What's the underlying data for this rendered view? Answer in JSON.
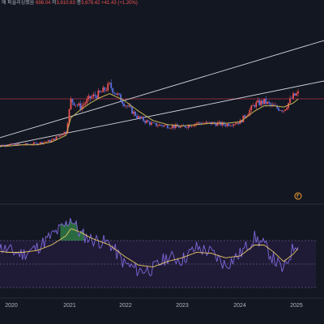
{
  "legend": {
    "title": "에 퍼플리싱했음",
    "o_value": "698.04",
    "h_label": "저",
    "h_value": "3,610.63",
    "c_label": "종",
    "c_value": "3,679.42",
    "change": "+41.43 (+1.20%)"
  },
  "colors": {
    "background": "#131722",
    "up": "#ef5350",
    "down": "#5b6ee1",
    "ma": "#c9b458",
    "channel": "#d1d4dc",
    "hline": "#b2304a",
    "rsi_line": "#8067dc",
    "rsi_signal": "#e8c867",
    "rsi_band": "#2a1f47"
  },
  "marker_icon": "flag-circle-icon",
  "chart_data": [
    {
      "type": "line",
      "title": "",
      "x": [
        "2019-10",
        "2020-01",
        "2020-04",
        "2020-07",
        "2020-10",
        "2021-01",
        "2021-02",
        "2021-04",
        "2021-06",
        "2021-08",
        "2021-10",
        "2022-01",
        "2022-04",
        "2022-07",
        "2022-10",
        "2023-01",
        "2023-04",
        "2023-07",
        "2023-10",
        "2024-01",
        "2024-04",
        "2024-06",
        "2024-08",
        "2024-10",
        "2024-12",
        "2025-01"
      ],
      "series": [
        {
          "name": "",
          "values": [
            1,
            2,
            2,
            3,
            5,
            12,
            35,
            30,
            37,
            40,
            46,
            33,
            22,
            17,
            16,
            15,
            18,
            18,
            17,
            19,
            32,
            34,
            30,
            28,
            38,
            40
          ]
        },
        {
          "name": "",
          "values": [
            1,
            1,
            2,
            2,
            4,
            9,
            22,
            28,
            33,
            37,
            40,
            35,
            27,
            20,
            17,
            16,
            17,
            18,
            18,
            19,
            27,
            31,
            31,
            30,
            33,
            36
          ]
        }
      ]
    },
    {
      "type": "line",
      "title": "",
      "x": [
        "2019-10",
        "2020-01",
        "2020-04",
        "2020-07",
        "2020-10",
        "2021-01",
        "2021-02",
        "2021-04",
        "2021-06",
        "2021-08",
        "2021-10",
        "2022-01",
        "2022-04",
        "2022-07",
        "2022-10",
        "2023-01",
        "2023-04",
        "2023-07",
        "2023-10",
        "2024-01",
        "2024-04",
        "2024-06",
        "2024-08",
        "2024-10",
        "2024-12",
        "2025-01"
      ],
      "series": [
        {
          "name": "",
          "values": [
            58,
            52,
            48,
            55,
            68,
            80,
            88,
            70,
            65,
            62,
            60,
            38,
            30,
            32,
            45,
            42,
            55,
            50,
            36,
            48,
            66,
            58,
            42,
            30,
            55,
            62
          ]
        },
        {
          "name": "",
          "values": [
            52,
            50,
            50,
            52,
            58,
            68,
            76,
            72,
            66,
            62,
            58,
            46,
            36,
            34,
            40,
            44,
            50,
            49,
            44,
            46,
            58,
            58,
            50,
            40,
            48,
            54
          ]
        }
      ]
    }
  ],
  "x_axis": {
    "ticks": [
      "2020",
      "2021",
      "2022",
      "2023",
      "2024",
      "2025"
    ]
  }
}
